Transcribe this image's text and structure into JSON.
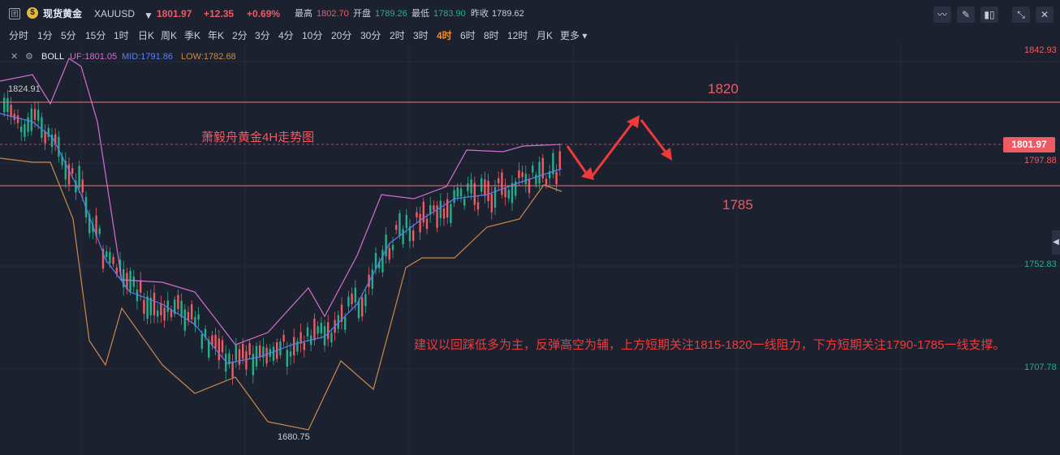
{
  "header": {
    "icon_glyph": "团",
    "name": "现货黄金",
    "symbol": "XAUUSD",
    "price": "1801.97",
    "change": "+12.35",
    "change_pct": "+0.69%",
    "high_label": "最高",
    "high": "1802.70",
    "open_label": "开盘",
    "open": "1789.26",
    "low_label": "最低",
    "low": "1783.90",
    "prev_label": "昨收",
    "prev": "1789.62"
  },
  "toolbar_icons": [
    "indicator-icon",
    "draw-icon",
    "candle-type-icon",
    "fullscreen-icon",
    "close-icon"
  ],
  "timeframes": [
    "分时",
    "1分",
    "5分",
    "15分",
    "1时",
    "日K",
    "周K",
    "季K",
    "年K",
    "2分",
    "3分",
    "4分",
    "10分",
    "20分",
    "30分",
    "2时",
    "3时",
    "4时",
    "6时",
    "8时",
    "12时",
    "月K",
    "更多"
  ],
  "active_timeframe": "4时",
  "indicator": {
    "name": "BOLL",
    "up": "UP:1801.05",
    "mid": "MID:1791.86",
    "low": "LOW:1782.68",
    "colors": {
      "up": "#d46fcf",
      "mid": "#5b7ef0",
      "low": "#c98a4a"
    }
  },
  "price_axis": [
    "1842.93",
    "1797.88",
    "1752.83",
    "1707.78"
  ],
  "current_price_tag": "1801.97",
  "chart_labels": {
    "max": "1824.91",
    "min": "1680.75"
  },
  "annotations": {
    "title": "萧毅舟黄金4H走势图",
    "level_high": "1820",
    "level_low": "1785",
    "advice": "建议以回踩低多为主，反弹高空为辅，上方短期关注1815-1820一线阻力，下方短期关注1790-1785一线支撑。"
  },
  "colors": {
    "bg": "#1c2130",
    "up": "#ef5a63",
    "down": "#22b08c",
    "accent": "#f28b2c",
    "annot": "#ef3a3a"
  }
}
